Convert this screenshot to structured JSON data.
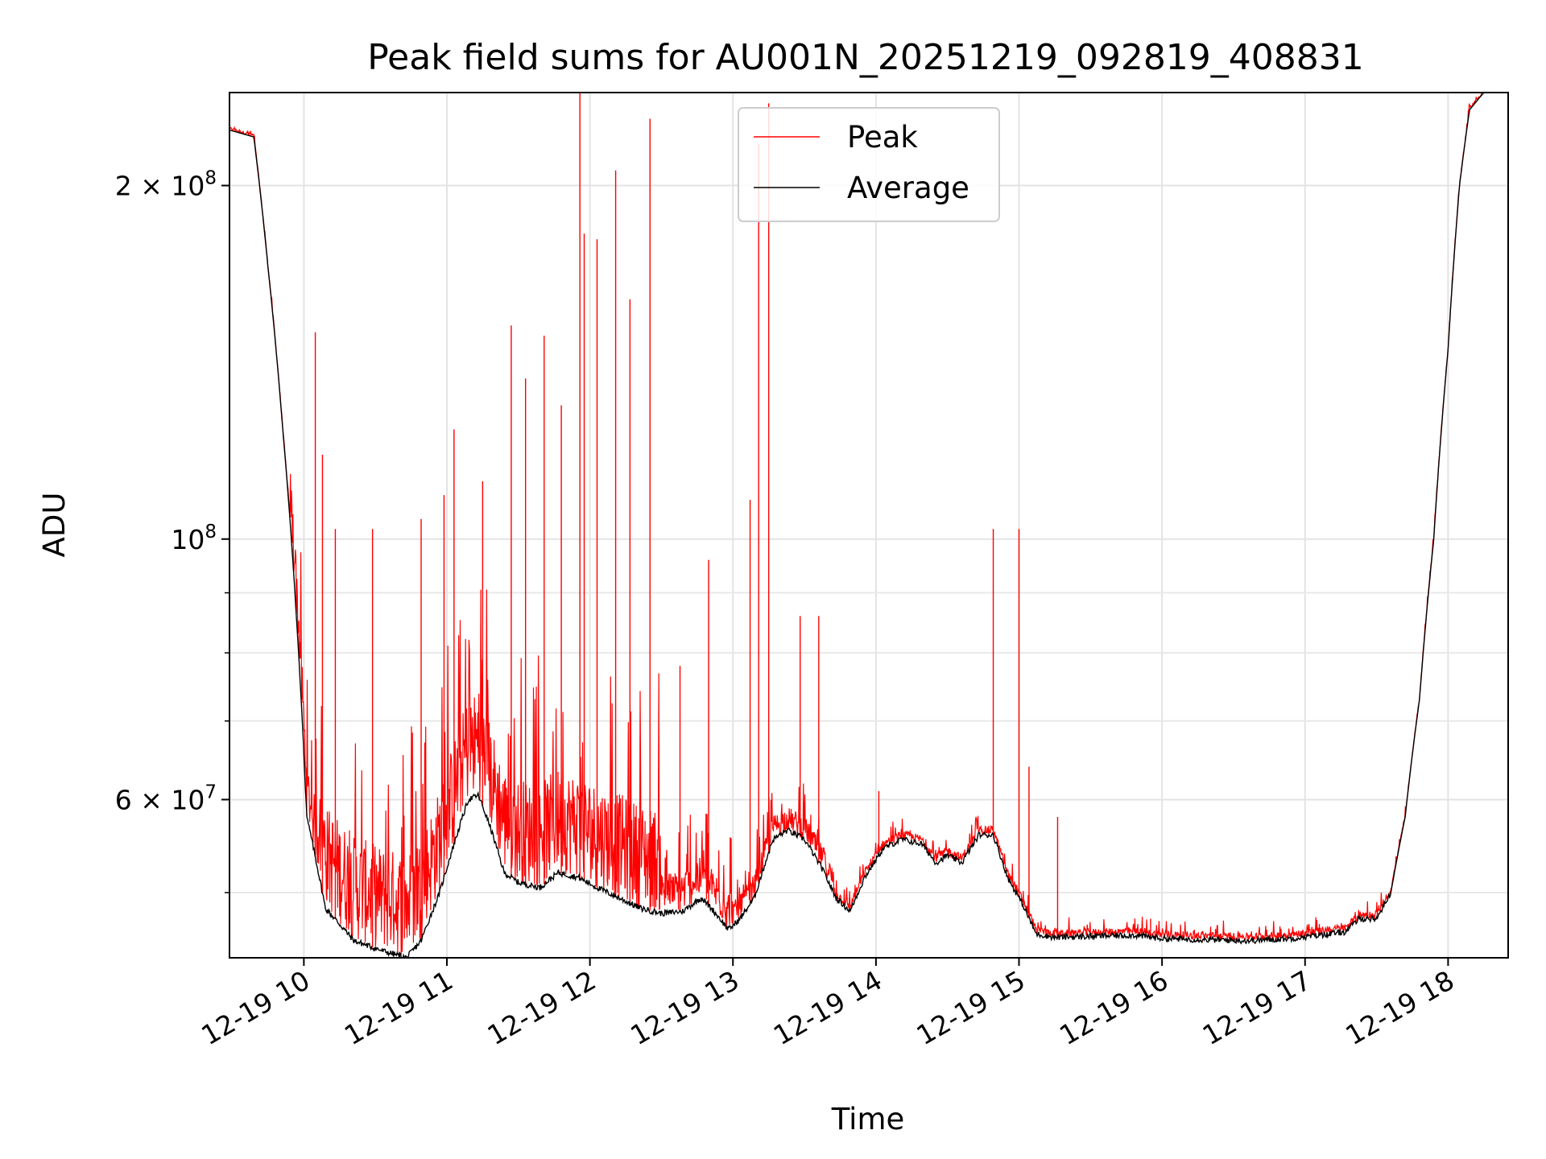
{
  "chart_data": {
    "type": "line",
    "title": "Peak field sums for AU001N_20251219_092819_408831",
    "xlabel": "Time",
    "ylabel": "ADU",
    "yscale": "log",
    "ylim": [
      44000000,
      240000000
    ],
    "xlim_hours": [
      9.48,
      18.42
    ],
    "grid": true,
    "legend_position": "upper-center",
    "x_tick_labels": [
      "12-19 10",
      "12-19 11",
      "12-19 12",
      "12-19 13",
      "12-19 14",
      "12-19 15",
      "12-19 16",
      "12-19 17",
      "12-19 18"
    ],
    "x_tick_hours": [
      10,
      11,
      12,
      13,
      14,
      15,
      16,
      17,
      18
    ],
    "y_major_ticks": [
      {
        "value": 100000000,
        "label": "10",
        "sup": "8"
      },
      {
        "value": 200000000,
        "label": "2 × 10",
        "sup": "8"
      },
      {
        "value": 60000000,
        "label": "6 × 10",
        "sup": "7"
      }
    ],
    "y_minor_ticks": [
      50000000,
      70000000,
      80000000,
      90000000
    ],
    "series": [
      {
        "name": "Peak",
        "color": "#ff0000",
        "spikes": [
          {
            "t": 10.08,
            "v": 150000000
          },
          {
            "t": 10.13,
            "v": 118000000
          },
          {
            "t": 10.22,
            "v": 102000000
          },
          {
            "t": 10.48,
            "v": 102000000
          },
          {
            "t": 10.82,
            "v": 104000000
          },
          {
            "t": 10.98,
            "v": 109000000
          },
          {
            "t": 11.05,
            "v": 124000000
          },
          {
            "t": 11.25,
            "v": 112000000
          },
          {
            "t": 11.45,
            "v": 152000000
          },
          {
            "t": 11.55,
            "v": 137000000
          },
          {
            "t": 11.68,
            "v": 149000000
          },
          {
            "t": 11.8,
            "v": 130000000
          },
          {
            "t": 11.93,
            "v": 240000000
          },
          {
            "t": 11.96,
            "v": 182000000
          },
          {
            "t": 12.05,
            "v": 180000000
          },
          {
            "t": 12.18,
            "v": 206000000
          },
          {
            "t": 12.28,
            "v": 160000000
          },
          {
            "t": 12.42,
            "v": 228000000
          },
          {
            "t": 12.63,
            "v": 78000000
          },
          {
            "t": 12.83,
            "v": 96000000
          },
          {
            "t": 13.12,
            "v": 108000000
          },
          {
            "t": 13.18,
            "v": 217000000
          },
          {
            "t": 13.25,
            "v": 235000000
          },
          {
            "t": 13.47,
            "v": 86000000
          },
          {
            "t": 13.6,
            "v": 86000000
          },
          {
            "t": 14.02,
            "v": 61000000
          },
          {
            "t": 14.82,
            "v": 102000000
          },
          {
            "t": 15.0,
            "v": 102000000
          },
          {
            "t": 15.07,
            "v": 64000000
          },
          {
            "t": 15.27,
            "v": 58000000
          },
          {
            "t": 15.92,
            "v": 47500000
          },
          {
            "t": 17.1,
            "v": 47000000
          }
        ]
      },
      {
        "name": "Average",
        "color": "#000000",
        "points": [
          [
            9.48,
            223000000
          ],
          [
            9.65,
            220000000
          ],
          [
            9.75,
            170000000
          ],
          [
            9.85,
            125000000
          ],
          [
            9.95,
            85000000
          ],
          [
            10.02,
            58000000
          ],
          [
            10.15,
            48500000
          ],
          [
            10.35,
            45500000
          ],
          [
            10.55,
            44600000
          ],
          [
            10.72,
            44000000
          ],
          [
            10.82,
            45500000
          ],
          [
            10.95,
            50000000
          ],
          [
            11.05,
            55000000
          ],
          [
            11.15,
            60000000
          ],
          [
            11.22,
            60500000
          ],
          [
            11.3,
            57000000
          ],
          [
            11.4,
            52000000
          ],
          [
            11.5,
            51000000
          ],
          [
            11.65,
            50500000
          ],
          [
            11.78,
            52000000
          ],
          [
            11.92,
            51500000
          ],
          [
            12.05,
            50500000
          ],
          [
            12.2,
            49500000
          ],
          [
            12.35,
            48500000
          ],
          [
            12.5,
            48000000
          ],
          [
            12.65,
            48200000
          ],
          [
            12.78,
            49500000
          ],
          [
            12.88,
            48000000
          ],
          [
            12.97,
            46500000
          ],
          [
            13.05,
            47500000
          ],
          [
            13.15,
            49500000
          ],
          [
            13.28,
            55500000
          ],
          [
            13.38,
            56500000
          ],
          [
            13.5,
            55500000
          ],
          [
            13.62,
            52500000
          ],
          [
            13.72,
            49500000
          ],
          [
            13.82,
            48200000
          ],
          [
            13.92,
            51500000
          ],
          [
            14.05,
            54500000
          ],
          [
            14.18,
            55500000
          ],
          [
            14.32,
            55000000
          ],
          [
            14.42,
            53000000
          ],
          [
            14.5,
            53800000
          ],
          [
            14.6,
            53000000
          ],
          [
            14.72,
            56000000
          ],
          [
            14.82,
            56000000
          ],
          [
            14.92,
            51500000
          ],
          [
            15.02,
            49000000
          ],
          [
            15.12,
            46100000
          ],
          [
            15.25,
            45800000
          ],
          [
            15.5,
            45900000
          ],
          [
            15.8,
            46000000
          ],
          [
            16.0,
            45700000
          ],
          [
            16.3,
            45600000
          ],
          [
            16.6,
            45500000
          ],
          [
            16.9,
            45700000
          ],
          [
            17.1,
            46000000
          ],
          [
            17.28,
            46300000
          ],
          [
            17.38,
            47500000
          ],
          [
            17.5,
            47500000
          ],
          [
            17.6,
            50000000
          ],
          [
            17.7,
            58000000
          ],
          [
            17.8,
            73000000
          ],
          [
            17.9,
            100000000
          ],
          [
            18.0,
            145000000
          ],
          [
            18.08,
            200000000
          ],
          [
            18.15,
            232000000
          ],
          [
            18.25,
            240000000
          ],
          [
            18.42,
            240000000
          ]
        ]
      }
    ]
  }
}
